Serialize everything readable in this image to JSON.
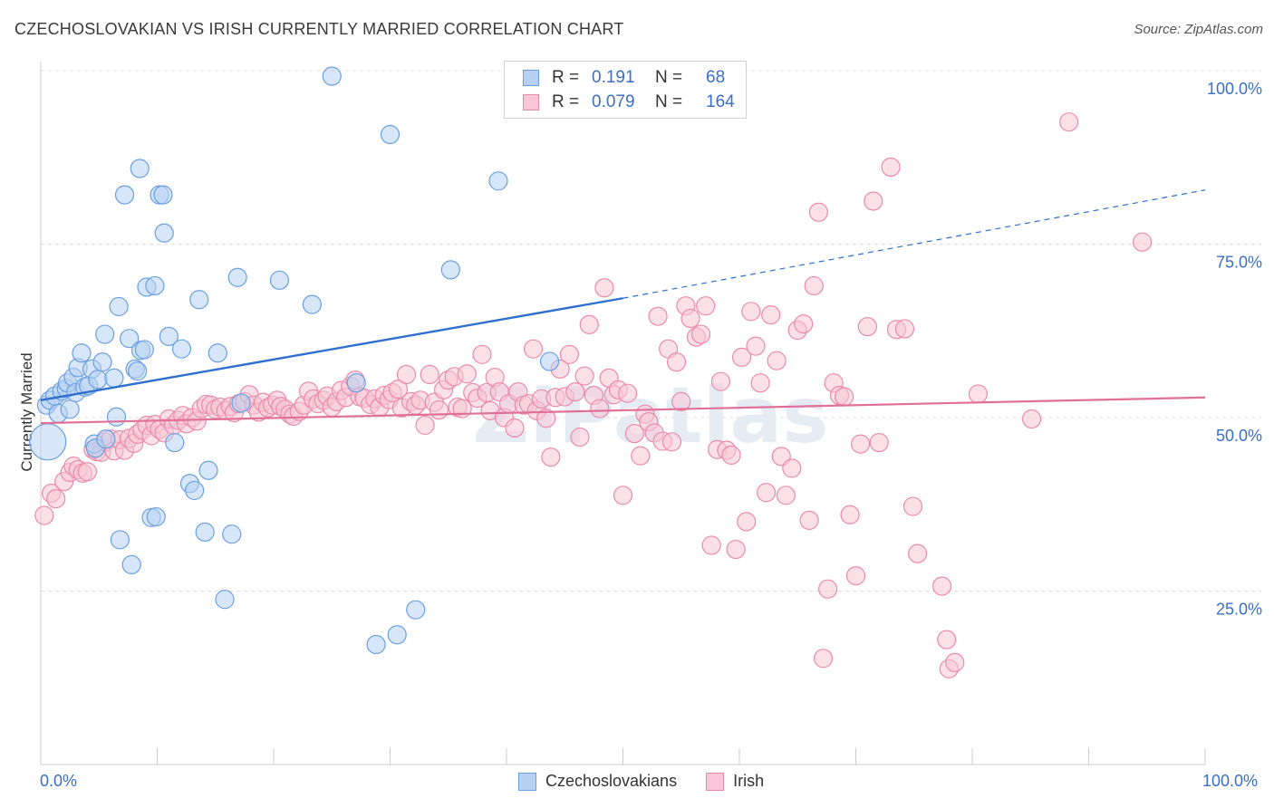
{
  "title": "CZECHOSLOVAKIAN VS IRISH CURRENTLY MARRIED CORRELATION CHART",
  "source": "Source: ZipAtlas.com",
  "watermark": "ZIPatlas",
  "legend_top": {
    "rows": [
      {
        "r_label": "R =",
        "r_value": "0.191",
        "n_label": "N =",
        "n_value": "68"
      },
      {
        "r_label": "R =",
        "r_value": "0.079",
        "n_label": "N =",
        "n_value": "164"
      }
    ]
  },
  "legend_bottom": [
    "Czechoslovakians",
    "Irish"
  ],
  "colors": {
    "blue_fill": "#b7d1f3",
    "blue_stroke": "#6a9fe0",
    "blue_line": "#2e6fd0",
    "pink_fill": "#f8c6d6",
    "pink_stroke": "#ea8aab",
    "pink_line": "#e07098",
    "axis_text": "#3b6fc4",
    "grid": "#dddddd"
  },
  "chart_data": {
    "type": "scatter",
    "title": "CZECHOSLOVAKIAN VS IRISH CURRENTLY MARRIED CORRELATION CHART",
    "xlabel": "",
    "ylabel": "Currently Married",
    "xlim": [
      0,
      100
    ],
    "ylim": [
      0,
      100
    ],
    "x_tick_labels": [
      "0.0%",
      "100.0%"
    ],
    "y_ticks": [
      25,
      50,
      75,
      100
    ],
    "y_tick_labels": [
      "25.0%",
      "50.0%",
      "75.0%",
      "100.0%"
    ],
    "grid": true,
    "legend_position": "top-center",
    "series": [
      {
        "name": "Czechoslovakians",
        "r": 0.191,
        "n": 68,
        "trend": {
          "x0": 0,
          "y0": 52.5,
          "x1": 50,
          "y1": 67.2,
          "dashed_to_x": 100,
          "dashed_to_y": 82.8
        },
        "points": [
          [
            0.5,
            51.8,
            10
          ],
          [
            0.8,
            52.5,
            10
          ],
          [
            1.2,
            53.1,
            10
          ],
          [
            1.5,
            50.6,
            10
          ],
          [
            1.8,
            53.8,
            10
          ],
          [
            2.2,
            54.2,
            10
          ],
          [
            2.3,
            55.0,
            10
          ],
          [
            2.5,
            51.2,
            10
          ],
          [
            2.8,
            55.8,
            10
          ],
          [
            3.0,
            53.6,
            10
          ],
          [
            3.2,
            57.2,
            10
          ],
          [
            3.5,
            59.3,
            10
          ],
          [
            3.8,
            54.4,
            10
          ],
          [
            4.1,
            54.6,
            10
          ],
          [
            4.4,
            57.0,
            10
          ],
          [
            4.6,
            46.2,
            10
          ],
          [
            4.7,
            45.6,
            10
          ],
          [
            4.9,
            55.5,
            10
          ],
          [
            5.3,
            58.0,
            10
          ],
          [
            5.5,
            62.0,
            10
          ],
          [
            5.6,
            46.9,
            10
          ],
          [
            6.3,
            55.7,
            10
          ],
          [
            6.5,
            50.1,
            10
          ],
          [
            6.7,
            66.0,
            10
          ],
          [
            6.8,
            32.4,
            10
          ],
          [
            7.2,
            82.1,
            10
          ],
          [
            7.6,
            61.4,
            10
          ],
          [
            7.8,
            28.8,
            10
          ],
          [
            8.1,
            57.0,
            10
          ],
          [
            8.3,
            56.7,
            10
          ],
          [
            8.5,
            85.9,
            10
          ],
          [
            8.6,
            59.7,
            10
          ],
          [
            8.9,
            59.8,
            10
          ],
          [
            9.1,
            68.8,
            10
          ],
          [
            9.5,
            35.6,
            10
          ],
          [
            9.8,
            69.0,
            10
          ],
          [
            9.9,
            35.7,
            10
          ],
          [
            10.2,
            82.1,
            10
          ],
          [
            10.5,
            82.1,
            10
          ],
          [
            10.6,
            76.6,
            10
          ],
          [
            11.0,
            61.7,
            10
          ],
          [
            11.5,
            46.4,
            10
          ],
          [
            12.1,
            59.9,
            10
          ],
          [
            12.8,
            40.5,
            10
          ],
          [
            13.2,
            39.5,
            10
          ],
          [
            13.6,
            67.0,
            10
          ],
          [
            14.1,
            33.5,
            10
          ],
          [
            14.4,
            42.4,
            10
          ],
          [
            15.2,
            59.3,
            10
          ],
          [
            15.8,
            23.8,
            10
          ],
          [
            16.4,
            33.2,
            10
          ],
          [
            16.9,
            70.2,
            10
          ],
          [
            17.2,
            52.1,
            10
          ],
          [
            20.5,
            69.8,
            10
          ],
          [
            23.3,
            66.3,
            10
          ],
          [
            25.0,
            99.2,
            10
          ],
          [
            27.1,
            55.0,
            10
          ],
          [
            28.8,
            17.3,
            10
          ],
          [
            30.0,
            90.8,
            10
          ],
          [
            30.6,
            18.7,
            10
          ],
          [
            32.2,
            22.3,
            10
          ],
          [
            35.2,
            71.3,
            10
          ],
          [
            39.3,
            84.1,
            10
          ],
          [
            43.7,
            58.1,
            10
          ],
          [
            0.6,
            46.5,
            20
          ]
        ]
      },
      {
        "name": "Irish",
        "r": 0.079,
        "n": 164,
        "trend": {
          "x0": 0,
          "y0": 49.2,
          "x1": 100,
          "y1": 52.9
        },
        "points": [
          [
            0.3,
            35.9
          ],
          [
            0.9,
            39.1
          ],
          [
            1.3,
            38.3
          ],
          [
            2.0,
            40.8
          ],
          [
            2.5,
            42.1
          ],
          [
            2.8,
            43.0
          ],
          [
            3.2,
            42.5
          ],
          [
            3.6,
            42.0
          ],
          [
            4.0,
            42.2
          ],
          [
            4.5,
            45.4
          ],
          [
            4.8,
            45.1
          ],
          [
            5.2,
            45.0
          ],
          [
            5.5,
            46.5
          ],
          [
            6.0,
            46.9
          ],
          [
            6.3,
            45.2
          ],
          [
            6.8,
            46.8
          ],
          [
            7.2,
            45.3
          ],
          [
            7.6,
            47.0
          ],
          [
            8.0,
            46.3
          ],
          [
            8.3,
            47.6
          ],
          [
            8.7,
            48.2
          ],
          [
            9.1,
            48.9
          ],
          [
            9.5,
            47.4
          ],
          [
            9.8,
            49.0
          ],
          [
            10.2,
            48.3
          ],
          [
            10.6,
            47.8
          ],
          [
            11.0,
            49.8
          ],
          [
            11.4,
            48.9
          ],
          [
            11.8,
            49.6
          ],
          [
            12.2,
            50.3
          ],
          [
            12.5,
            49.1
          ],
          [
            13.0,
            50.0
          ],
          [
            13.4,
            49.5
          ],
          [
            13.8,
            51.3
          ],
          [
            14.2,
            51.9
          ],
          [
            14.6,
            51.8
          ],
          [
            15.0,
            51.2
          ],
          [
            15.4,
            51.5
          ],
          [
            15.9,
            51.0
          ],
          [
            16.3,
            51.6
          ],
          [
            16.6,
            50.7
          ],
          [
            17.0,
            52.0
          ],
          [
            17.5,
            52.3
          ],
          [
            17.9,
            53.3
          ],
          [
            18.3,
            51.8
          ],
          [
            18.7,
            50.8
          ],
          [
            19.1,
            52.2
          ],
          [
            19.5,
            51.4
          ],
          [
            19.9,
            51.8
          ],
          [
            20.3,
            52.5
          ],
          [
            20.6,
            51.6
          ],
          [
            21.0,
            51.2
          ],
          [
            21.4,
            50.5
          ],
          [
            21.7,
            50.2
          ],
          [
            22.2,
            50.9
          ],
          [
            22.6,
            51.8
          ],
          [
            23.0,
            53.8
          ],
          [
            23.4,
            52.7
          ],
          [
            23.8,
            52.0
          ],
          [
            24.3,
            52.5
          ],
          [
            24.6,
            53.1
          ],
          [
            25.0,
            51.5
          ],
          [
            25.4,
            52.3
          ],
          [
            25.8,
            53.9
          ],
          [
            26.2,
            52.9
          ],
          [
            26.6,
            54.5
          ],
          [
            27.0,
            55.4
          ],
          [
            27.4,
            53.0
          ],
          [
            27.8,
            52.8
          ],
          [
            28.3,
            51.9
          ],
          [
            28.7,
            52.7
          ],
          [
            29.1,
            51.5
          ],
          [
            29.5,
            53.2
          ],
          [
            29.9,
            52.6
          ],
          [
            30.2,
            53.6
          ],
          [
            30.7,
            54.1
          ],
          [
            31.0,
            51.4
          ],
          [
            31.4,
            56.2
          ],
          [
            31.8,
            52.3
          ],
          [
            32.2,
            51.8
          ],
          [
            32.6,
            52.5
          ],
          [
            33.0,
            48.9
          ],
          [
            33.4,
            56.2
          ],
          [
            33.8,
            52.2
          ],
          [
            34.2,
            51.1
          ],
          [
            34.6,
            54.0
          ],
          [
            35.0,
            55.4
          ],
          [
            35.5,
            55.9
          ],
          [
            35.8,
            51.5
          ],
          [
            36.2,
            51.3
          ],
          [
            36.6,
            56.3
          ],
          [
            37.1,
            53.6
          ],
          [
            37.5,
            52.8
          ],
          [
            37.9,
            59.1
          ],
          [
            38.3,
            53.6
          ],
          [
            38.6,
            51.0
          ],
          [
            39.0,
            55.8
          ],
          [
            39.4,
            53.7
          ],
          [
            39.8,
            50.0
          ],
          [
            40.2,
            52.0
          ],
          [
            40.7,
            48.5
          ],
          [
            41.0,
            53.7
          ],
          [
            41.5,
            51.8
          ],
          [
            41.9,
            52.0
          ],
          [
            42.3,
            59.9
          ],
          [
            42.6,
            51.0
          ],
          [
            43.0,
            52.7
          ],
          [
            43.4,
            49.9
          ],
          [
            43.8,
            44.3
          ],
          [
            44.2,
            52.9
          ],
          [
            44.6,
            57.0
          ],
          [
            45.0,
            53.0
          ],
          [
            45.4,
            59.1
          ],
          [
            45.9,
            53.7
          ],
          [
            46.3,
            47.2
          ],
          [
            46.7,
            56.0
          ],
          [
            47.1,
            63.4
          ],
          [
            47.5,
            53.2
          ],
          [
            48.0,
            51.3
          ],
          [
            48.4,
            68.7
          ],
          [
            48.8,
            55.7
          ],
          [
            49.2,
            53.3
          ],
          [
            49.6,
            54.0
          ],
          [
            50.0,
            38.8
          ],
          [
            50.4,
            53.5
          ],
          [
            51.0,
            47.7
          ],
          [
            51.5,
            44.5
          ],
          [
            51.9,
            50.5
          ],
          [
            52.2,
            49.4
          ],
          [
            52.7,
            47.8
          ],
          [
            53.0,
            64.6
          ],
          [
            53.4,
            46.6
          ],
          [
            53.9,
            59.9
          ],
          [
            54.2,
            46.5
          ],
          [
            54.6,
            58.0
          ],
          [
            55.0,
            52.3
          ],
          [
            55.4,
            66.1
          ],
          [
            55.8,
            64.3
          ],
          [
            56.3,
            61.6
          ],
          [
            56.7,
            62.0
          ],
          [
            57.1,
            66.1
          ],
          [
            57.6,
            31.6
          ],
          [
            58.1,
            45.4
          ],
          [
            58.4,
            55.2
          ],
          [
            58.9,
            45.3
          ],
          [
            59.3,
            44.6
          ],
          [
            59.7,
            31.0
          ],
          [
            60.2,
            58.7
          ],
          [
            60.6,
            35.0
          ],
          [
            61.0,
            65.3
          ],
          [
            61.4,
            60.3
          ],
          [
            61.8,
            55.0
          ],
          [
            62.3,
            39.2
          ],
          [
            62.7,
            64.8
          ],
          [
            63.2,
            58.2
          ],
          [
            63.6,
            44.4
          ],
          [
            64.0,
            38.8
          ],
          [
            64.5,
            42.7
          ],
          [
            65.0,
            62.6
          ],
          [
            65.5,
            63.5
          ],
          [
            66.0,
            35.2
          ],
          [
            66.4,
            69.0
          ],
          [
            66.8,
            79.6
          ],
          [
            67.2,
            15.3
          ],
          [
            67.6,
            25.3
          ],
          [
            68.1,
            55.0
          ],
          [
            68.6,
            53.2
          ],
          [
            69.0,
            53.0
          ],
          [
            69.5,
            36.0
          ],
          [
            70.0,
            27.2
          ],
          [
            70.4,
            46.2
          ],
          [
            71.0,
            63.1
          ],
          [
            71.5,
            81.2
          ],
          [
            72.0,
            46.4
          ],
          [
            73.0,
            86.1
          ],
          [
            73.5,
            62.7
          ],
          [
            74.2,
            62.8
          ],
          [
            74.9,
            37.2
          ],
          [
            75.3,
            30.4
          ],
          [
            77.4,
            25.7
          ],
          [
            77.8,
            18.0
          ],
          [
            78.0,
            13.8
          ],
          [
            78.5,
            14.7
          ],
          [
            80.5,
            53.4
          ],
          [
            85.1,
            49.8
          ],
          [
            88.3,
            92.6
          ],
          [
            94.6,
            75.3
          ]
        ]
      }
    ]
  }
}
